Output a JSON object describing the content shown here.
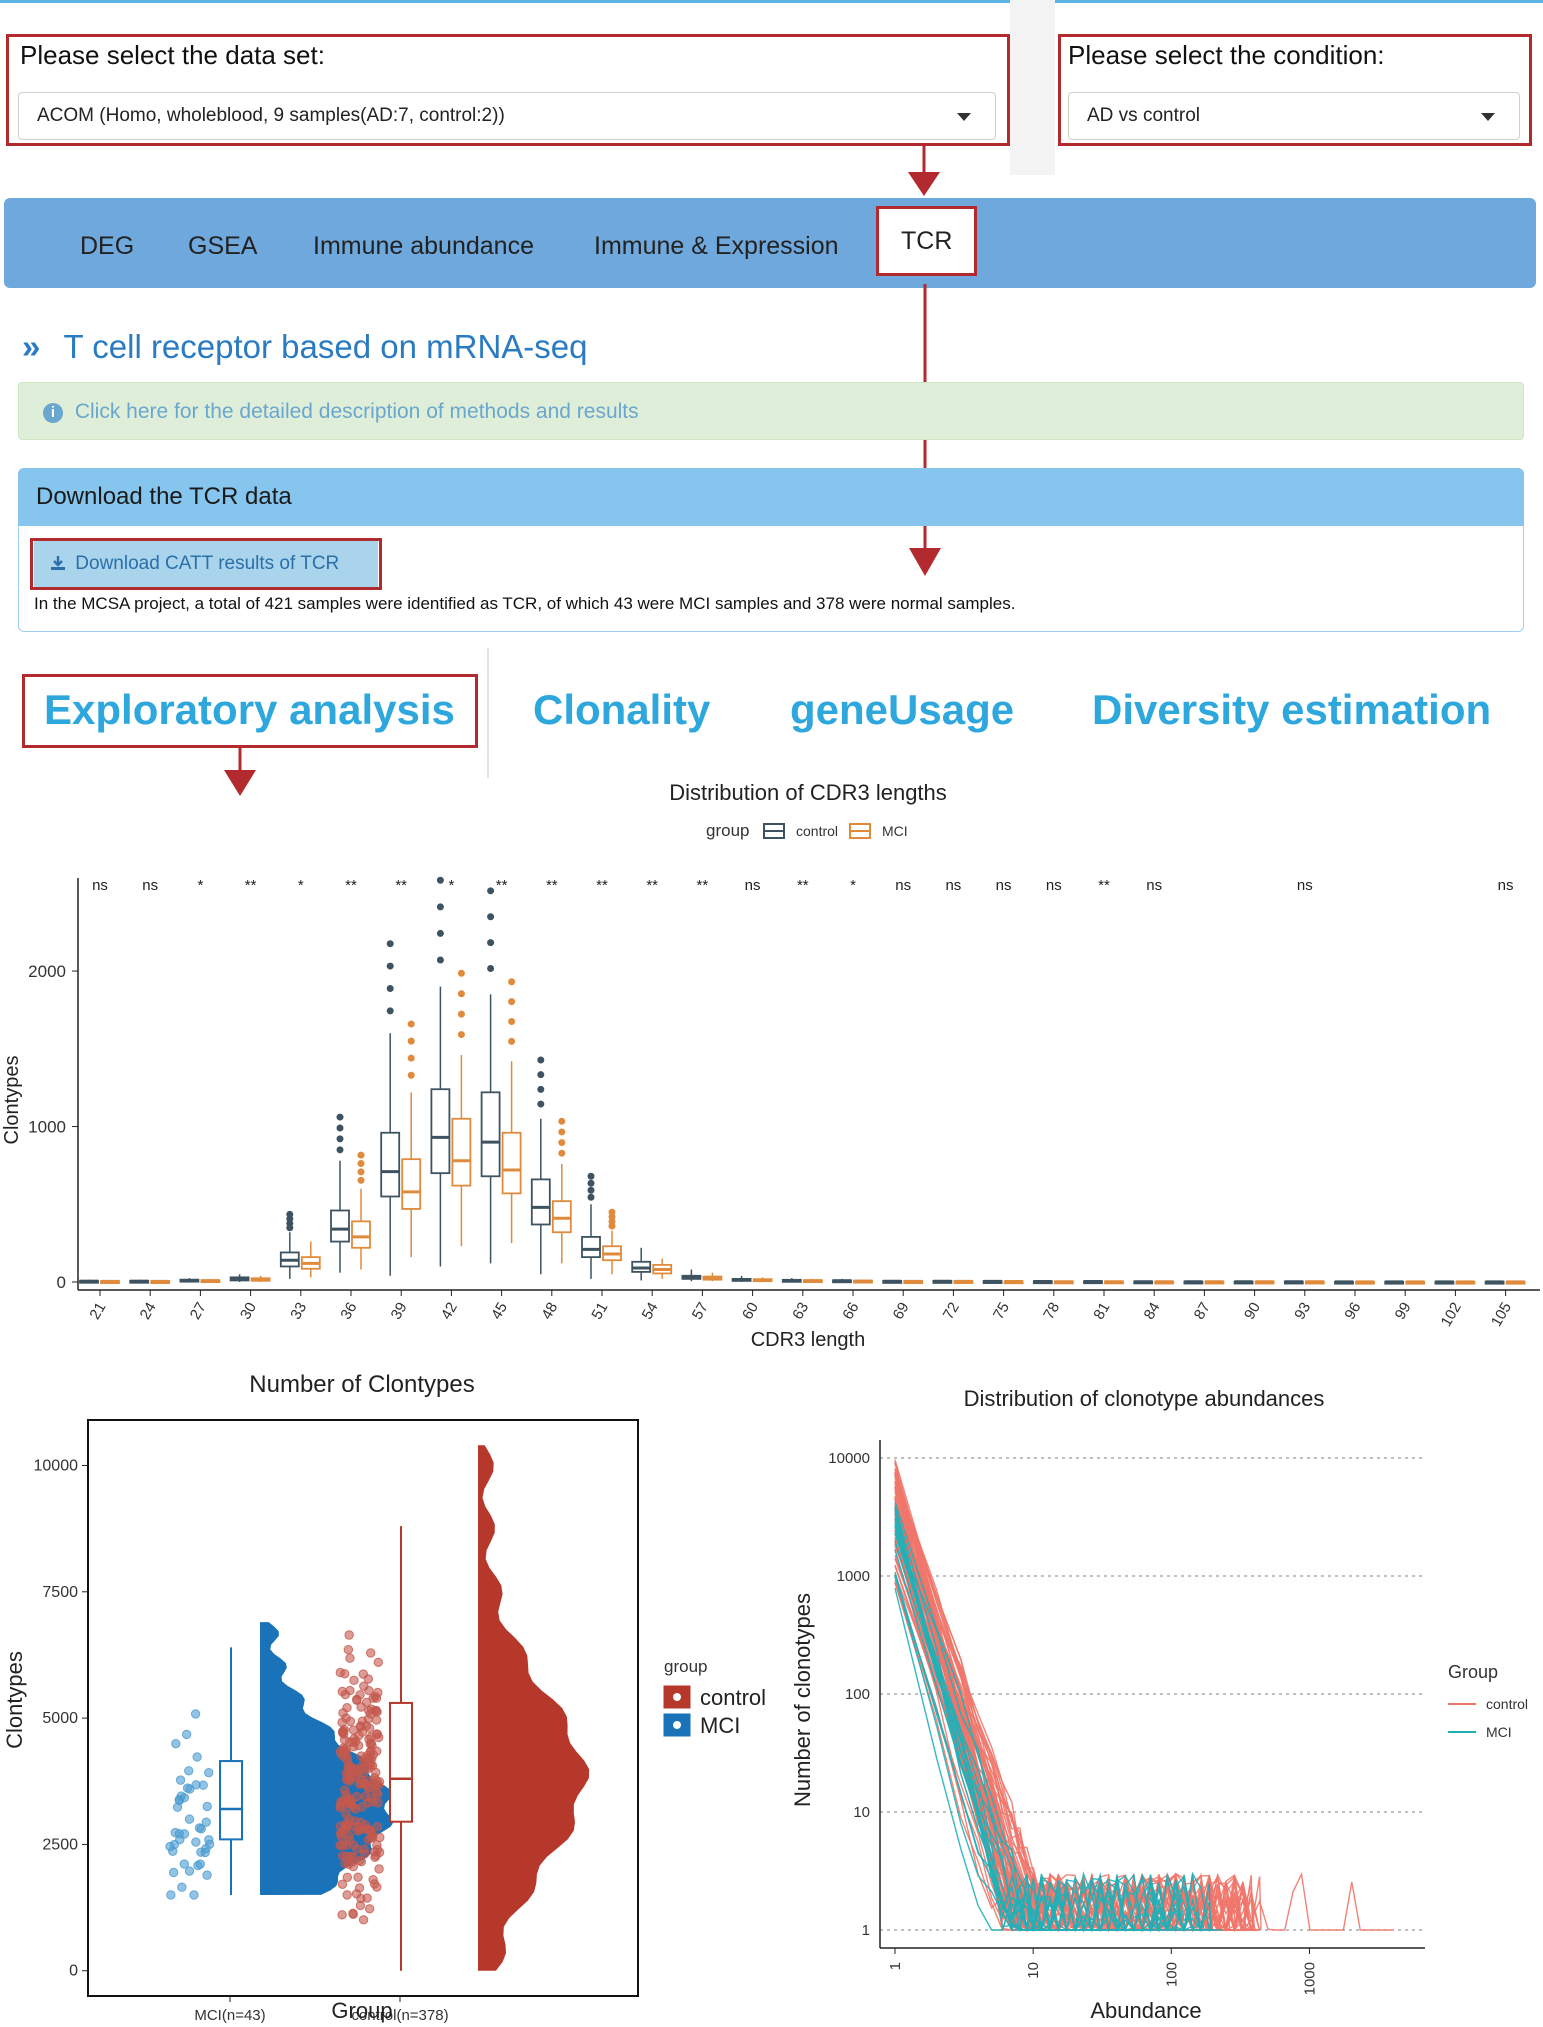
{
  "selectors": {
    "dataset_label": "Please select the data set:",
    "dataset_value": "ACOM (Homo, wholeblood, 9 samples(AD:7, control:2))",
    "condition_label": "Please select the condition:",
    "condition_value": "AD vs control"
  },
  "tabs": [
    "DEG",
    "GSEA",
    "Immune abundance",
    "Immune & Expression",
    "TCR"
  ],
  "active_tab": "TCR",
  "section_title": "T cell receptor based on mRNA-seq",
  "info_text": "Click here for the detailed description of methods and results",
  "download": {
    "header": "Download the TCR data",
    "button": "Download CATT results of TCR",
    "note": "In the MCSA project, a total of 421 samples were identified as TCR, of which 43 were MCI samples and 378 were normal samples."
  },
  "subtabs": [
    "Exploratory analysis",
    "Clonality",
    "geneUsage",
    "Diversity estimation"
  ],
  "colors": {
    "accent_red": "#b22a2e",
    "tab_blue": "#6fa8dc",
    "link_blue": "#2ea7dd",
    "control_dark": "#3d5361",
    "mci_orange": "#e08a3c",
    "control_red": "#b5382b",
    "mci_blue": "#1a72b8",
    "line_control": "#f0766a",
    "line_mci": "#1fb0b8"
  },
  "chart_data": [
    {
      "type": "box",
      "title": "Distribution of CDR3 lengths",
      "xlabel": "CDR3 length",
      "ylabel": "Clontypes",
      "legend_title": "group",
      "legend": [
        "control",
        "MCI"
      ],
      "legend_position": "top",
      "categories": [
        "21",
        "24",
        "27",
        "30",
        "33",
        "36",
        "39",
        "42",
        "45",
        "48",
        "51",
        "54",
        "57",
        "60",
        "63",
        "66",
        "69",
        "72",
        "75",
        "78",
        "81",
        "84",
        "87",
        "90",
        "93",
        "96",
        "99",
        "102",
        "105"
      ],
      "yticks": [
        0,
        1000,
        2000
      ],
      "ylim": [
        0,
        2650
      ],
      "significance": [
        "ns",
        "ns",
        "*",
        "**",
        "*",
        "**",
        "**",
        "*",
        "**",
        "**",
        "**",
        "**",
        "**",
        "ns",
        "**",
        "*",
        "ns",
        "ns",
        "ns",
        "ns",
        "**",
        "ns",
        "",
        "",
        "ns",
        "",
        "",
        "",
        "ns"
      ],
      "series": [
        {
          "name": "control",
          "medians": [
            5,
            5,
            10,
            20,
            140,
            340,
            710,
            930,
            900,
            480,
            210,
            90,
            30,
            15,
            10,
            8,
            5,
            5,
            4,
            3,
            3,
            2,
            2,
            2,
            2,
            1,
            1,
            1,
            1
          ],
          "q1": [
            2,
            2,
            5,
            10,
            100,
            260,
            550,
            700,
            680,
            370,
            160,
            65,
            20,
            8,
            5,
            4,
            2,
            2,
            2,
            1,
            1,
            1,
            1,
            1,
            1,
            0,
            0,
            0,
            0
          ],
          "q3": [
            8,
            8,
            15,
            30,
            190,
            460,
            960,
            1240,
            1220,
            660,
            290,
            130,
            40,
            20,
            14,
            11,
            7,
            7,
            6,
            5,
            5,
            4,
            3,
            3,
            3,
            2,
            2,
            2,
            2
          ],
          "lo": [
            0,
            0,
            0,
            0,
            20,
            60,
            40,
            100,
            120,
            50,
            20,
            10,
            5,
            0,
            0,
            0,
            0,
            0,
            0,
            0,
            0,
            0,
            0,
            0,
            0,
            0,
            0,
            0,
            0
          ],
          "hi": [
            15,
            15,
            25,
            50,
            320,
            780,
            1600,
            1900,
            1850,
            1050,
            500,
            220,
            80,
            40,
            25,
            20,
            12,
            12,
            10,
            8,
            8,
            6,
            5,
            5,
            5,
            3,
            3,
            3,
            3
          ]
        },
        {
          "name": "MCI",
          "medians": [
            4,
            4,
            8,
            16,
            120,
            290,
            580,
            780,
            720,
            410,
            180,
            80,
            25,
            12,
            8,
            6,
            4,
            4,
            3,
            2,
            2,
            2,
            2,
            2,
            2,
            1,
            1,
            1,
            1
          ],
          "q1": [
            2,
            2,
            4,
            8,
            85,
            220,
            470,
            620,
            570,
            320,
            140,
            55,
            15,
            6,
            4,
            3,
            2,
            2,
            1,
            1,
            1,
            1,
            1,
            1,
            1,
            0,
            0,
            0,
            0
          ],
          "q3": [
            6,
            6,
            12,
            24,
            160,
            390,
            790,
            1050,
            960,
            520,
            230,
            110,
            35,
            18,
            12,
            9,
            6,
            6,
            5,
            4,
            4,
            3,
            3,
            3,
            3,
            2,
            2,
            2,
            2
          ],
          "lo": [
            0,
            0,
            0,
            0,
            30,
            80,
            160,
            230,
            250,
            120,
            50,
            20,
            5,
            0,
            0,
            0,
            0,
            0,
            0,
            0,
            0,
            0,
            0,
            0,
            0,
            0,
            0,
            0,
            0
          ],
          "hi": [
            10,
            10,
            20,
            40,
            260,
            600,
            1220,
            1460,
            1420,
            760,
            330,
            150,
            60,
            30,
            20,
            15,
            10,
            10,
            8,
            6,
            6,
            5,
            4,
            4,
            4,
            3,
            3,
            3,
            3
          ]
        }
      ]
    },
    {
      "type": "raincloud",
      "title": "Number of Clontypes",
      "xlabel": "Group",
      "ylabel": "Clontypes",
      "legend_title": "group",
      "legend": [
        "control",
        "MCI"
      ],
      "categories": [
        "MCI(n=43)",
        "control(n=378)"
      ],
      "yticks": [
        0,
        2500,
        5000,
        7500,
        10000
      ],
      "ylim": [
        -500,
        10900
      ],
      "boxes": [
        {
          "name": "MCI",
          "lo": 1500,
          "q1": 2600,
          "median": 3200,
          "q3": 4150,
          "hi": 6400
        },
        {
          "name": "control",
          "lo": 0,
          "q1": 2950,
          "median": 3800,
          "q3": 5300,
          "hi": 8800
        }
      ]
    },
    {
      "type": "line",
      "title": "Distribution of clonotype abundances",
      "xlabel": "Abundance",
      "ylabel": "Number of clonotypes",
      "legend_title": "Group",
      "legend": [
        "control",
        "MCI"
      ],
      "xscale": "log",
      "yscale": "log",
      "xticks": [
        "1",
        "10",
        "100",
        "1000"
      ],
      "yticks": [
        "1",
        "10",
        "100",
        "1000",
        "10000"
      ]
    }
  ]
}
